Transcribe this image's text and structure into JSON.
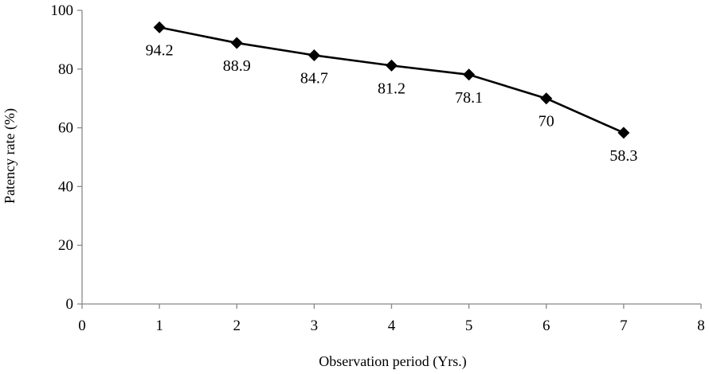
{
  "chart_data": {
    "type": "line",
    "x": [
      1,
      2,
      3,
      4,
      5,
      6,
      7
    ],
    "series": [
      {
        "values": [
          94.2,
          88.9,
          84.7,
          81.2,
          78.1,
          70,
          58.3
        ]
      }
    ],
    "data_labels": [
      "94.2",
      "88.9",
      "84.7",
      "81.2",
      "78.1",
      "70",
      "58.3"
    ],
    "xlabel": "Observation period (Yrs.)",
    "ylabel": "Patency rate (%)",
    "xlim": [
      0,
      8
    ],
    "ylim": [
      0,
      100
    ],
    "xticks": [
      "0",
      "1",
      "2",
      "3",
      "4",
      "5",
      "6",
      "7",
      "8"
    ],
    "yticks": [
      "0",
      "20",
      "40",
      "60",
      "80",
      "100"
    ],
    "grid": false,
    "legend": "none",
    "line_color": "#000000",
    "marker": "diamond"
  }
}
